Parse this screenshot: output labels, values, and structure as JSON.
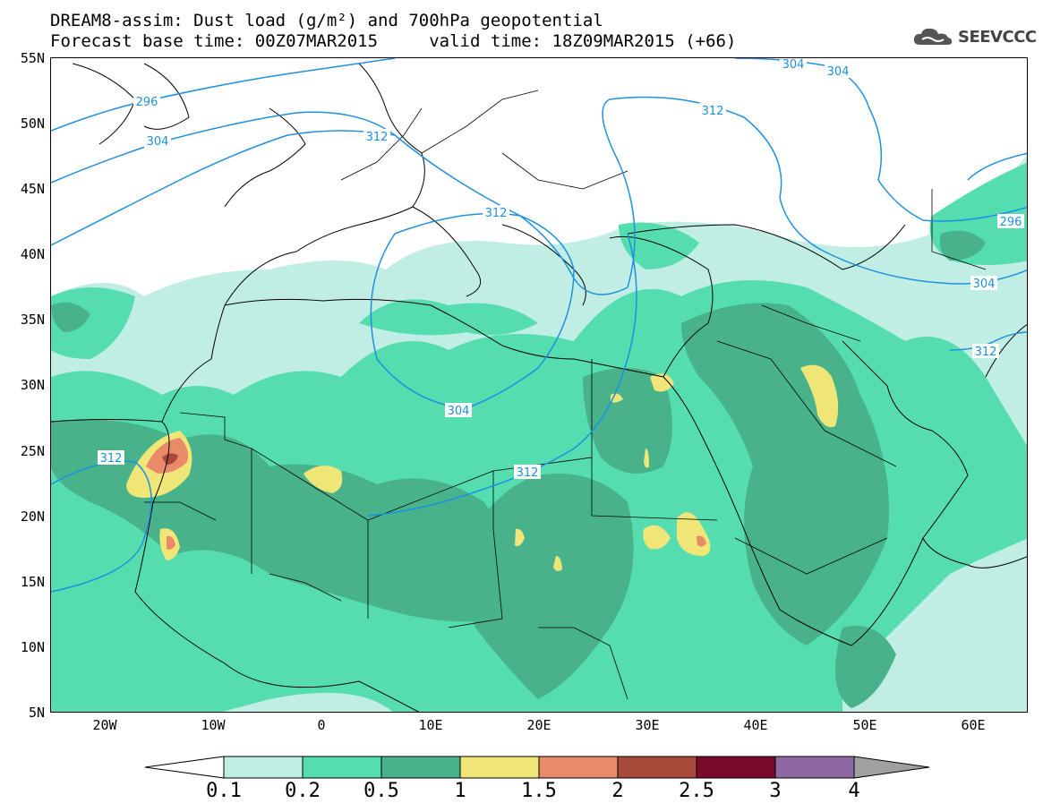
{
  "title_line1": "DREAM8-assim: Dust load (g/m²) and 700hPa geopotential",
  "title_line2": "Forecast base time: 00Z07MAR2015     valid time: 18Z09MAR2015 (+66)",
  "logo_text": "SEEVCCC",
  "map": {
    "lon_range": [
      -25,
      65
    ],
    "lat_range": [
      5,
      55
    ],
    "lat_ticks": [
      "55N",
      "50N",
      "45N",
      "40N",
      "35N",
      "30N",
      "25N",
      "20N",
      "15N",
      "10N",
      "5N"
    ],
    "lon_ticks": [
      "20W",
      "10W",
      "0",
      "10E",
      "20E",
      "30E",
      "40E",
      "50E",
      "60E"
    ],
    "contour_labels": [
      "296",
      "304",
      "312",
      "312",
      "304",
      "304",
      "312",
      "312",
      "312",
      "296",
      "304",
      "312",
      "304",
      "304"
    ],
    "contour_color": "#1e90e0"
  },
  "colorbar": {
    "labels": [
      "0.1",
      "0.2",
      "0.5",
      "1",
      "1.5",
      "2",
      "2.5",
      "3",
      "4"
    ],
    "colors": [
      "#c0eee4",
      "#55ddb0",
      "#48b38a",
      "#f0e678",
      "#e98a68",
      "#a84a3a",
      "#7a0a2a",
      "#8e68a0"
    ],
    "under_color": "#ffffff",
    "over_color": "#a0a0a0"
  }
}
